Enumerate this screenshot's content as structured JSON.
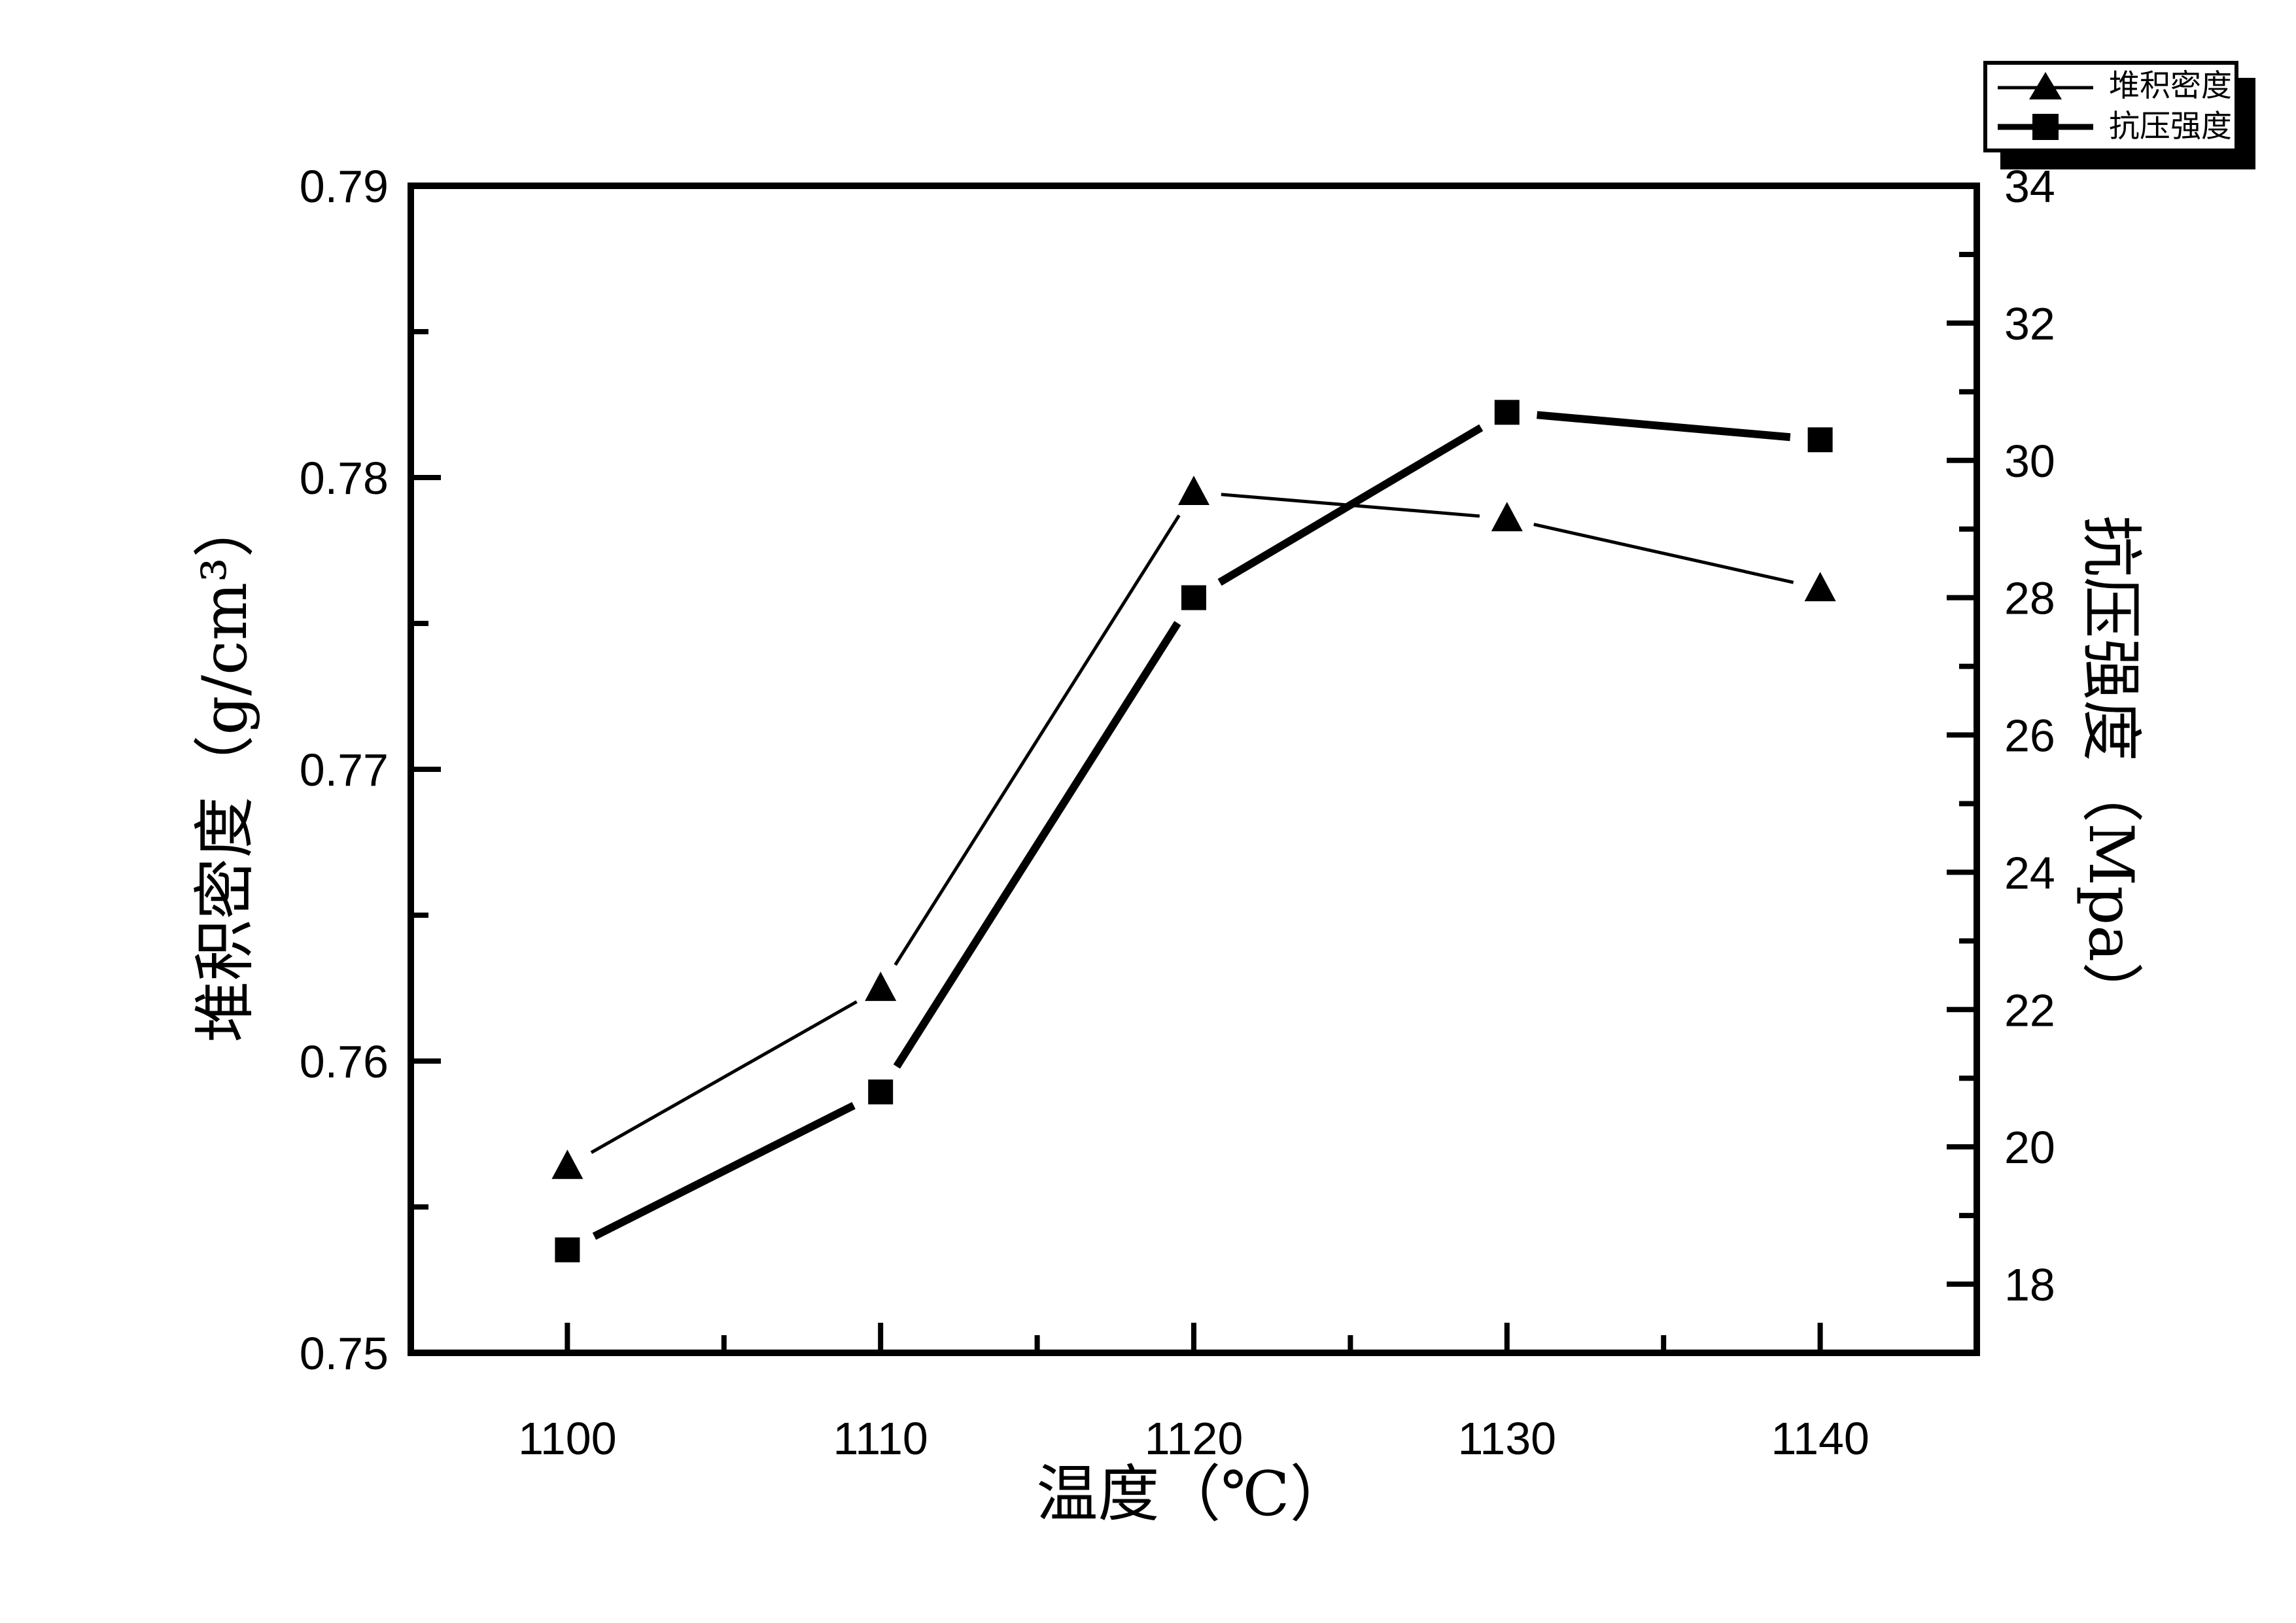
{
  "colors": {
    "foreground": "#000000",
    "background": "#ffffff"
  },
  "legend": {
    "position": "top-right",
    "entries": [
      {
        "label": "堆积密度",
        "marker": "triangle"
      },
      {
        "label": "抗压强度",
        "marker": "square"
      }
    ]
  },
  "chart_data": {
    "type": "line",
    "title": "",
    "xlabel": "温度（℃）",
    "xlim": [
      1095,
      1145
    ],
    "x_major_ticks": [
      1100,
      1110,
      1120,
      1130,
      1140
    ],
    "x_tick_labels": [
      "1100",
      "1110",
      "1120",
      "1130",
      "1140"
    ],
    "x_minor_ticks": [
      1105,
      1115,
      1125,
      1135
    ],
    "grid": "off",
    "legend_position": "top-right",
    "axes": {
      "left": {
        "label": "堆积密度（g/cm³）",
        "unit": "g/cm³",
        "lim": [
          0.75,
          0.79
        ],
        "major_ticks": [
          0.75,
          0.76,
          0.77,
          0.78,
          0.79
        ],
        "tick_labels": [
          "0.75",
          "0.76",
          "0.77",
          "0.78",
          "0.79"
        ],
        "minor_ticks": [
          0.755,
          0.765,
          0.775,
          0.785
        ]
      },
      "right": {
        "label": "抗压强度（Mpa）",
        "unit": "Mpa",
        "lim": [
          17,
          34
        ],
        "major_ticks": [
          18,
          20,
          22,
          24,
          26,
          28,
          30,
          32,
          34
        ],
        "tick_labels": [
          "18",
          "20",
          "22",
          "24",
          "26",
          "28",
          "30",
          "32",
          "34"
        ],
        "minor_ticks": [
          19,
          21,
          23,
          25,
          27,
          29,
          31,
          33
        ]
      }
    },
    "x": [
      1100,
      1110,
      1120,
      1130,
      1140
    ],
    "series": [
      {
        "name": "堆积密度",
        "axis": "left",
        "marker": "triangle",
        "values": [
          0.7564,
          0.7625,
          0.7795,
          0.7786,
          0.7762
        ],
        "line_width": 5,
        "marker_size": 48,
        "marker_gap": 42
      },
      {
        "name": "抗压强度",
        "axis": "right",
        "marker": "square",
        "values": [
          18.5,
          20.8,
          28.0,
          30.7,
          30.3
        ],
        "line_width": 12,
        "marker_size": 38,
        "marker_gap": 46
      }
    ]
  }
}
